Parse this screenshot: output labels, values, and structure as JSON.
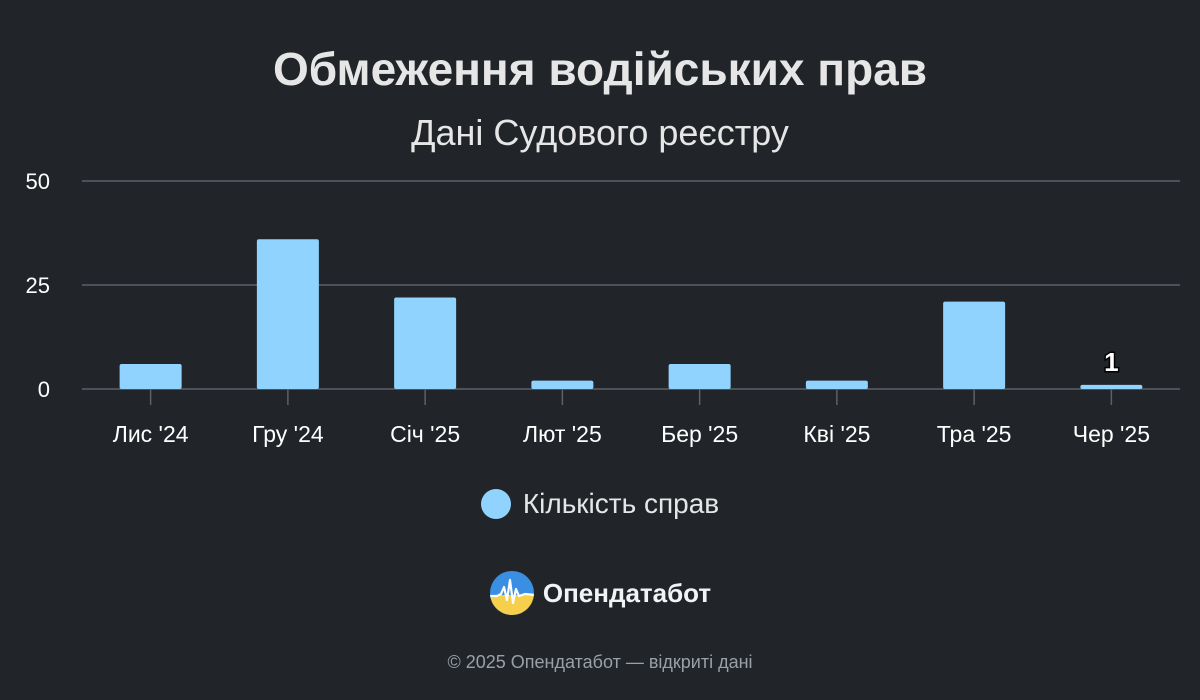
{
  "header": {
    "title": "Обмеження водійських прав",
    "subtitle": "Дані Судового реєстру"
  },
  "chart_data": {
    "type": "bar",
    "title": "Обмеження водійських прав",
    "subtitle": "Дані Судового реєстру",
    "categories": [
      "Лис '24",
      "Гру '24",
      "Січ '25",
      "Лют '25",
      "Бер '25",
      "Кві '25",
      "Тра '25",
      "Чер '25"
    ],
    "series": [
      {
        "name": "Кількість справ",
        "values": [
          6,
          36,
          22,
          2,
          6,
          2,
          21,
          1
        ],
        "color": "#8fd3fe"
      }
    ],
    "data_labels": [
      null,
      null,
      null,
      null,
      null,
      null,
      null,
      "1"
    ],
    "y_ticks": [
      "0",
      "25",
      "50"
    ],
    "ylim": [
      0,
      50
    ],
    "grid": true,
    "legend_position": "bottom-center"
  },
  "legend": {
    "label": "Кількість справ",
    "color": "#8fd3fe"
  },
  "brand": {
    "name": "Опендатабот",
    "icon": "opendatabot-logo-icon"
  },
  "footer": {
    "text": "© 2025 Опендатабот — відкриті дані"
  }
}
